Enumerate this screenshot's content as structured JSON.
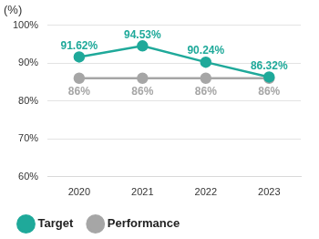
{
  "chart_data": {
    "type": "line",
    "y_label": "(%)",
    "categories": [
      "2020",
      "2021",
      "2022",
      "2023"
    ],
    "series": [
      {
        "name": "Target",
        "color": "#1fa99a",
        "marker": "circle",
        "values": [
          91.62,
          94.53,
          90.24,
          86.32
        ],
        "value_labels": [
          "91.62%",
          "94.53%",
          "90.24%",
          "86.32%"
        ]
      },
      {
        "name": "Performance",
        "color": "#a6a6a6",
        "marker": "circle",
        "values": [
          86,
          86,
          86,
          86
        ],
        "value_labels": [
          "86%",
          "86%",
          "86%",
          "86%"
        ]
      }
    ],
    "ylim": [
      60,
      100
    ],
    "yticks": [
      {
        "value": 60,
        "label": "60%"
      },
      {
        "value": 70,
        "label": "70%"
      },
      {
        "value": 80,
        "label": "80%"
      },
      {
        "value": 90,
        "label": "90%"
      },
      {
        "value": 100,
        "label": "100%"
      }
    ],
    "grid": true,
    "legend": "lower left",
    "data_labels": true
  }
}
